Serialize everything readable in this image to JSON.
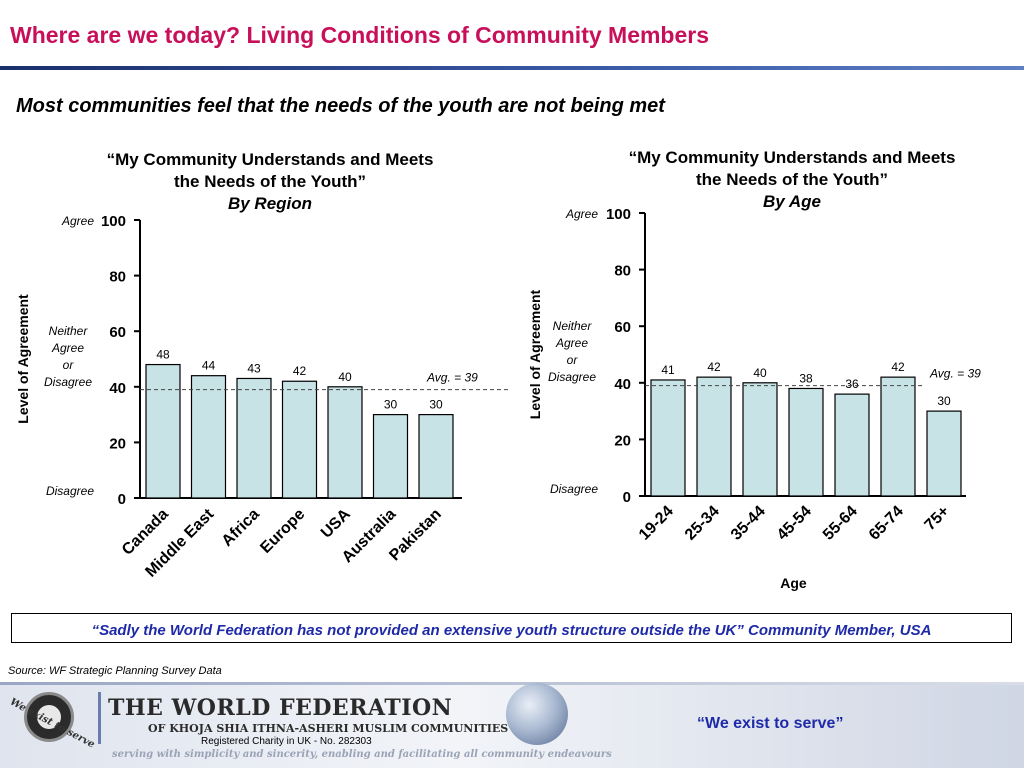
{
  "header": {
    "title": "Where are we today? Living Conditions of Community Members"
  },
  "subtitle": "Most communities feel that the needs of the youth are not being met",
  "chart_data": [
    {
      "type": "bar",
      "title": "“My Community Understands and Meets the Needs of the Youth”",
      "title_lines": [
        "“My Community Understands and Meets",
        "the Needs of the Youth”",
        "By Region"
      ],
      "subtitle": "By Region",
      "ylabel": "Level of Agreement",
      "xlabel": "",
      "ylim": [
        0,
        100
      ],
      "yticks": [
        0,
        20,
        40,
        60,
        80,
        100
      ],
      "scale_labels": {
        "agree": "Agree",
        "neutral": [
          "Neither",
          "Agree",
          "or",
          "Disagree"
        ],
        "disagree": "Disagree"
      },
      "categories": [
        "Canada",
        "Middle East",
        "Africa",
        "Europe",
        "USA",
        "Australia",
        "Pakistan"
      ],
      "values": [
        48,
        44,
        43,
        42,
        40,
        30,
        30
      ],
      "average": 39,
      "average_label": "Avg. = 39",
      "bar_color": "#c8e3e6",
      "grid": false
    },
    {
      "type": "bar",
      "title": "“My Community Understands and Meets the Needs of the Youth”",
      "title_lines": [
        "“My Community Understands and Meets",
        "the Needs of the Youth”",
        "By Age"
      ],
      "subtitle": "By Age",
      "ylabel": "Level of Agreement",
      "xlabel": "Age",
      "ylim": [
        0,
        100
      ],
      "yticks": [
        0,
        20,
        40,
        60,
        80,
        100
      ],
      "scale_labels": {
        "agree": "Agree",
        "neutral": [
          "Neither",
          "Agree",
          "or",
          "Disagree"
        ],
        "disagree": "Disagree"
      },
      "categories": [
        "19-24",
        "25-34",
        "35-44",
        "45-54",
        "55-64",
        "65-74",
        "75+"
      ],
      "values": [
        41,
        42,
        40,
        38,
        36,
        42,
        30
      ],
      "average": 39,
      "average_label": "Avg. = 39",
      "bar_color": "#c8e3e6",
      "grid": false
    }
  ],
  "quote": "“Sadly the World Federation has not provided an extensive youth structure outside the UK” Community Member, USA",
  "source": "Source: WF Strategic Planning Survey Data",
  "footer": {
    "org_name": "THE WORLD FEDERATION",
    "org_sub": "OF KHOJA SHIA ITHNA-ASHERI MUSLIM COMMUNITIES",
    "registration": "Registered Charity in UK - No. 282303",
    "tagline": "serving with simplicity and sincerity, enabling and facilitating all community endeavours",
    "logo_text": "We exist to serve",
    "motto": "“We exist to serve”"
  },
  "colors": {
    "title": "#c8105a",
    "accent_blue": "#1e2aa8",
    "bar": "#c8e3e6"
  }
}
